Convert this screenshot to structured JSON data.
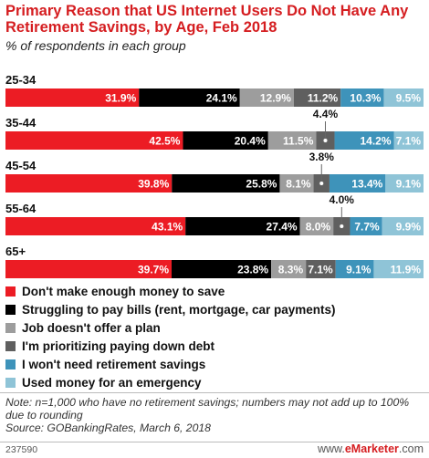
{
  "header": {
    "title": "Primary Reason that US Internet Users Do Not Have Any Retirement Savings, by Age, Feb 2018",
    "subtitle": "% of respondents in each group"
  },
  "chart_data": {
    "type": "bar",
    "orientation": "horizontal",
    "stacked": true,
    "categories": [
      "25-34",
      "35-44",
      "45-54",
      "55-64",
      "65+"
    ],
    "series": [
      {
        "name": "Don't make enough money to save",
        "color": "#ec1c24",
        "values": [
          31.9,
          42.5,
          39.8,
          43.1,
          39.7
        ]
      },
      {
        "name": "Struggling to pay bills (rent, mortgage, car payments)",
        "color": "#000000",
        "values": [
          24.1,
          20.4,
          25.8,
          27.4,
          23.8
        ]
      },
      {
        "name": "Job doesn't offer a plan",
        "color": "#9d9d9d",
        "values": [
          12.9,
          11.5,
          8.1,
          8.0,
          8.3
        ]
      },
      {
        "name": "I'm prioritizing paying down debt",
        "color": "#5f5f5f",
        "values": [
          11.2,
          4.4,
          3.8,
          4.0,
          7.1
        ]
      },
      {
        "name": "I won't need retirement savings",
        "color": "#3e93ba",
        "values": [
          10.3,
          14.2,
          13.4,
          7.7,
          9.1
        ]
      },
      {
        "name": "Used money for an emergency",
        "color": "#8fc4d7",
        "values": [
          9.5,
          7.1,
          9.1,
          9.9,
          11.9
        ]
      }
    ],
    "legend_position": "bottom-left",
    "grid": false
  },
  "footer": {
    "note": "Note: n=1,000 who have no retirement savings; numbers may not add up to 100% due to rounding",
    "source": "Source: GOBankingRates, March 6, 2018",
    "chart_id": "237590",
    "brand_prefix": "www.",
    "brand_name": "eMarketer",
    "brand_suffix": ".com"
  }
}
